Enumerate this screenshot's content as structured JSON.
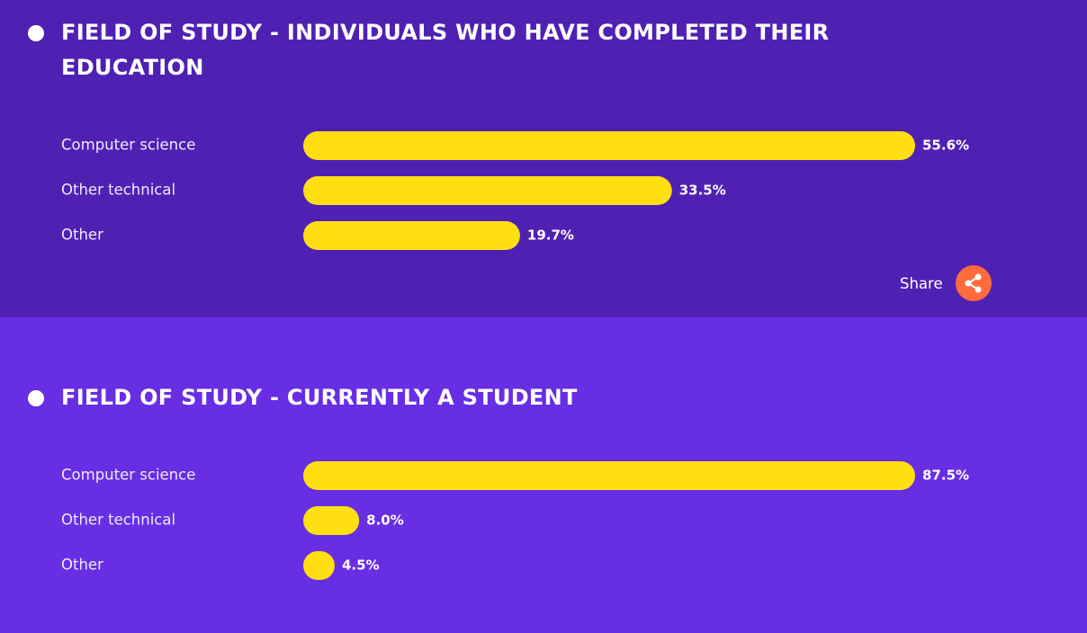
{
  "chart_data": [
    {
      "type": "bar",
      "orientation": "horizontal",
      "title": "FIELD OF STUDY - INDIVIDUALS WHO HAVE COMPLETED THEIR EDUCATION",
      "categories": [
        "Computer science",
        "Other technical",
        "Other"
      ],
      "values": [
        55.6,
        33.5,
        19.7
      ],
      "value_labels": [
        "55.6%",
        "33.5%",
        "19.7%"
      ],
      "color": "#ffdf12",
      "background": "#4f21b3",
      "xlim": [
        0,
        55.6
      ]
    },
    {
      "type": "bar",
      "orientation": "horizontal",
      "title": "FIELD OF STUDY - CURRENTLY A STUDENT",
      "categories": [
        "Computer science",
        "Other technical",
        "Other"
      ],
      "values": [
        87.5,
        8.0,
        4.5
      ],
      "value_labels": [
        "87.5%",
        "8.0%",
        "4.5%"
      ],
      "color": "#ffdf12",
      "background": "#672ee3",
      "xlim": [
        0,
        87.5
      ]
    }
  ],
  "share_button": "Share"
}
